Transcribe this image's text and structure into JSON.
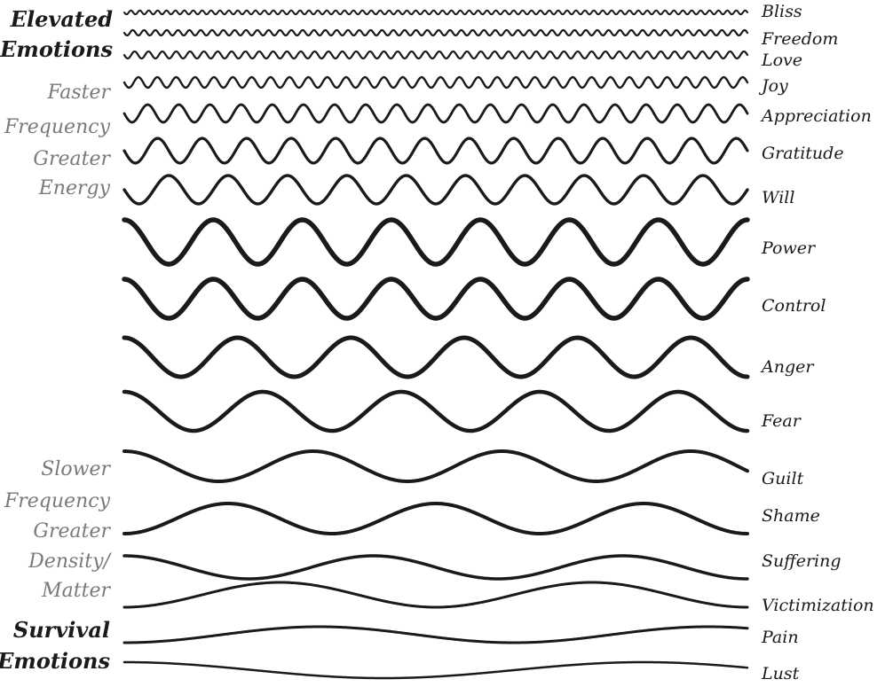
{
  "left_captions": {
    "elevated": [
      "Elevated",
      "Emotions"
    ],
    "faster": [
      "Faster",
      "Frequency",
      "Greater",
      "Energy"
    ],
    "slower": [
      "Slower",
      "Frequency",
      "Greater",
      "Density/",
      "Matter"
    ],
    "survival": [
      "Survival",
      "Emotions"
    ]
  },
  "waves": [
    {
      "label": "Bliss",
      "cycles": 70
    },
    {
      "label": "Freedom",
      "cycles": 55
    },
    {
      "label": "Love",
      "cycles": 45
    },
    {
      "label": "Joy",
      "cycles": 33
    },
    {
      "label": "Appreciation",
      "cycles": 20
    },
    {
      "label": "Gratitude",
      "cycles": 14
    },
    {
      "label": "Will",
      "cycles": 10.5
    },
    {
      "label": "Power",
      "cycles": 7
    },
    {
      "label": "Control",
      "cycles": 7
    },
    {
      "label": "Anger",
      "cycles": 5.5
    },
    {
      "label": "Fear",
      "cycles": 4.5
    },
    {
      "label": "Guilt",
      "cycles": 3.3
    },
    {
      "label": "Shame",
      "cycles": 3
    },
    {
      "label": "Suffering",
      "cycles": 2.5
    },
    {
      "label": "Victimization",
      "cycles": 2
    },
    {
      "label": "Pain",
      "cycles": 1.6
    },
    {
      "label": "Lust",
      "cycles": 1.2
    }
  ]
}
